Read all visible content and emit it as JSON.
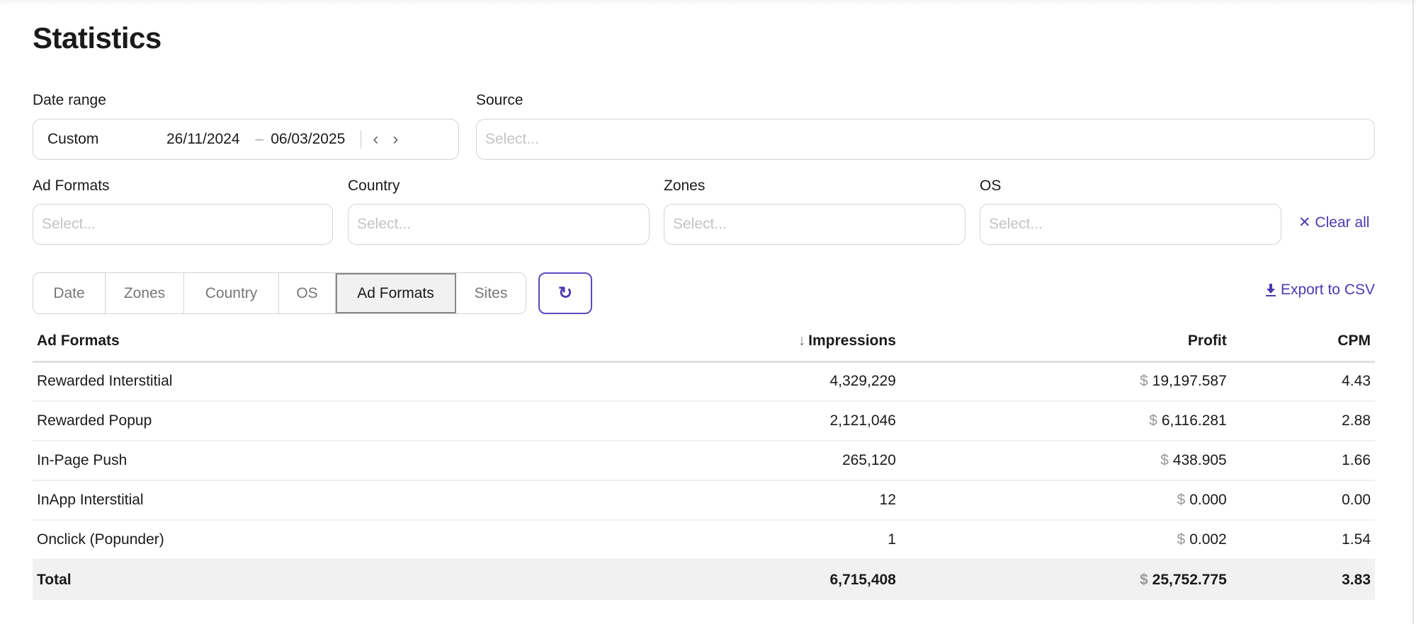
{
  "page": {
    "title": "Statistics"
  },
  "filters": {
    "date_range": {
      "label": "Date range",
      "mode": "Custom",
      "start": "26/11/2024",
      "end": "06/03/2025",
      "prev": "‹",
      "next": "›"
    },
    "source": {
      "label": "Source",
      "placeholder": "Select..."
    },
    "ad_formats": {
      "label": "Ad Formats",
      "placeholder": "Select..."
    },
    "country": {
      "label": "Country",
      "placeholder": "Select..."
    },
    "zones": {
      "label": "Zones",
      "placeholder": "Select..."
    },
    "os": {
      "label": "OS",
      "placeholder": "Select..."
    },
    "clear_all": "✕ Clear all"
  },
  "group_tabs": [
    {
      "label": "Date"
    },
    {
      "label": "Zones"
    },
    {
      "label": "Country"
    },
    {
      "label": "OS"
    },
    {
      "label": "Ad Formats",
      "active": true
    },
    {
      "label": "Sites"
    }
  ],
  "refresh_icon": "↻",
  "export": {
    "icon": "download-icon",
    "label": "Export to CSV"
  },
  "table": {
    "columns": [
      "Ad Formats",
      "Impressions",
      "Profit",
      "CPM"
    ],
    "sort_column": "Impressions",
    "sort_icon": "↓",
    "currency": "$",
    "rows": [
      {
        "name": "Rewarded Interstitial",
        "impressions": "4,329,229",
        "profit": "19,197.587",
        "cpm": "4.43"
      },
      {
        "name": "Rewarded Popup",
        "impressions": "2,121,046",
        "profit": "6,116.281",
        "cpm": "2.88"
      },
      {
        "name": "In-Page Push",
        "impressions": "265,120",
        "profit": "438.905",
        "cpm": "1.66"
      },
      {
        "name": "InApp Interstitial",
        "impressions": "12",
        "profit": "0.000",
        "cpm": "0.00"
      },
      {
        "name": "Onclick (Popunder)",
        "impressions": "1",
        "profit": "0.002",
        "cpm": "1.54"
      }
    ],
    "total": {
      "name": "Total",
      "impressions": "6,715,408",
      "profit": "25,752.775",
      "cpm": "3.83"
    }
  },
  "colors": {
    "accent": "#4b3bb0",
    "total_bg": "#f1f1f1",
    "border": "#d4d4d4"
  }
}
